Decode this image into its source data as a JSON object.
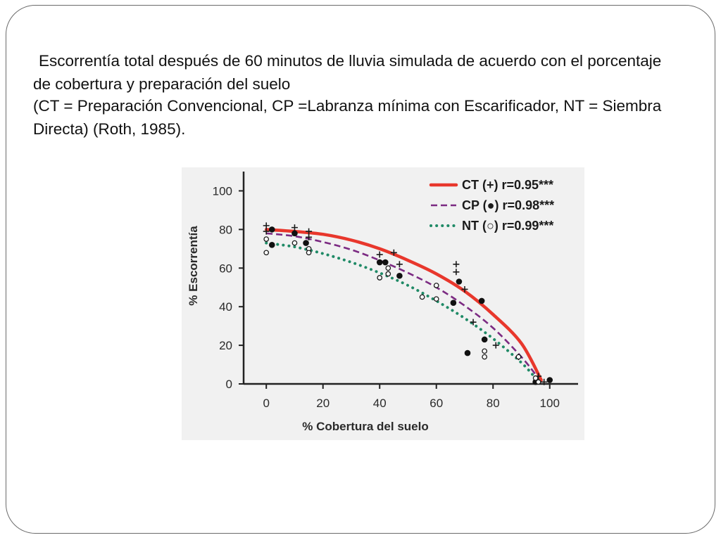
{
  "slide": {
    "title": "Escorrentía total después de 60 minutos de lluvia simulada de acuerdo con el porcentaje de cobertura y preparación del suelo",
    "subtitle": "(CT = Preparación Convencional, CP =Labranza mínima con Escarificador, NT = Siembra Directa) (Roth, 1985)."
  },
  "chart_data": {
    "type": "scatter",
    "title": "",
    "xlabel": "% Cobertura del suelo",
    "ylabel": "% Escorrentía",
    "xlim": [
      -8,
      110
    ],
    "ylim": [
      0,
      110
    ],
    "xticks": [
      0,
      20,
      40,
      60,
      80,
      100
    ],
    "yticks": [
      0,
      20,
      40,
      60,
      80,
      100
    ],
    "grid": false,
    "legend_position": "top-right",
    "series": [
      {
        "name": "CT (+)",
        "legend_label": "CT (+) r=0.95***",
        "marker": "+",
        "line_style": "solid",
        "color": "#e8372c",
        "points": [
          {
            "x": 0,
            "y": 82
          },
          {
            "x": 0,
            "y": 79
          },
          {
            "x": 10,
            "y": 81
          },
          {
            "x": 15,
            "y": 79
          },
          {
            "x": 15,
            "y": 76
          },
          {
            "x": 40,
            "y": 67
          },
          {
            "x": 45,
            "y": 68
          },
          {
            "x": 47,
            "y": 62
          },
          {
            "x": 67,
            "y": 62
          },
          {
            "x": 67,
            "y": 58
          },
          {
            "x": 70,
            "y": 49
          },
          {
            "x": 73,
            "y": 32
          },
          {
            "x": 81,
            "y": 20
          },
          {
            "x": 89,
            "y": 14
          },
          {
            "x": 96,
            "y": 4
          },
          {
            "x": 98,
            "y": 1
          }
        ],
        "fit": [
          {
            "x": 0,
            "y": 80
          },
          {
            "x": 10,
            "y": 79
          },
          {
            "x": 20,
            "y": 77.5
          },
          {
            "x": 30,
            "y": 74.5
          },
          {
            "x": 40,
            "y": 70
          },
          {
            "x": 50,
            "y": 64
          },
          {
            "x": 60,
            "y": 57
          },
          {
            "x": 70,
            "y": 48
          },
          {
            "x": 80,
            "y": 36
          },
          {
            "x": 90,
            "y": 21
          },
          {
            "x": 97,
            "y": 2
          }
        ]
      },
      {
        "name": "CP (●)",
        "legend_label": "CP (●) r=0.98***",
        "marker": "filled-circle",
        "line_style": "dashed",
        "color": "#7b2a82",
        "points": [
          {
            "x": 2,
            "y": 80
          },
          {
            "x": 2,
            "y": 72
          },
          {
            "x": 10,
            "y": 78
          },
          {
            "x": 14,
            "y": 73
          },
          {
            "x": 40,
            "y": 63
          },
          {
            "x": 42,
            "y": 63
          },
          {
            "x": 47,
            "y": 56
          },
          {
            "x": 66,
            "y": 42
          },
          {
            "x": 68,
            "y": 53
          },
          {
            "x": 71,
            "y": 16
          },
          {
            "x": 76,
            "y": 43
          },
          {
            "x": 77,
            "y": 23
          },
          {
            "x": 95,
            "y": 1
          },
          {
            "x": 100,
            "y": 2
          }
        ],
        "fit": [
          {
            "x": 0,
            "y": 78
          },
          {
            "x": 10,
            "y": 76.5
          },
          {
            "x": 20,
            "y": 73.5
          },
          {
            "x": 30,
            "y": 69.5
          },
          {
            "x": 40,
            "y": 64
          },
          {
            "x": 50,
            "y": 57.5
          },
          {
            "x": 60,
            "y": 50
          },
          {
            "x": 70,
            "y": 40.5
          },
          {
            "x": 80,
            "y": 29
          },
          {
            "x": 90,
            "y": 14
          },
          {
            "x": 96,
            "y": 3
          }
        ]
      },
      {
        "name": "NT (○)",
        "legend_label": "NT (○) r=0.99***",
        "marker": "open-circle",
        "line_style": "dotted",
        "color": "#1f8a66",
        "points": [
          {
            "x": 0,
            "y": 75
          },
          {
            "x": 0,
            "y": 68
          },
          {
            "x": 10,
            "y": 73
          },
          {
            "x": 15,
            "y": 70
          },
          {
            "x": 15,
            "y": 68
          },
          {
            "x": 40,
            "y": 55
          },
          {
            "x": 43,
            "y": 60
          },
          {
            "x": 43,
            "y": 57
          },
          {
            "x": 55,
            "y": 45
          },
          {
            "x": 60,
            "y": 44
          },
          {
            "x": 60,
            "y": 51
          },
          {
            "x": 77,
            "y": 17
          },
          {
            "x": 77,
            "y": 14
          },
          {
            "x": 89,
            "y": 14
          },
          {
            "x": 95,
            "y": 3
          },
          {
            "x": 96,
            "y": 1
          }
        ],
        "fit": [
          {
            "x": 0,
            "y": 73
          },
          {
            "x": 10,
            "y": 71
          },
          {
            "x": 20,
            "y": 67.5
          },
          {
            "x": 30,
            "y": 63
          },
          {
            "x": 40,
            "y": 57.5
          },
          {
            "x": 50,
            "y": 51
          },
          {
            "x": 60,
            "y": 43
          },
          {
            "x": 70,
            "y": 34
          },
          {
            "x": 80,
            "y": 23.5
          },
          {
            "x": 90,
            "y": 11
          },
          {
            "x": 95,
            "y": 3
          }
        ]
      }
    ]
  }
}
